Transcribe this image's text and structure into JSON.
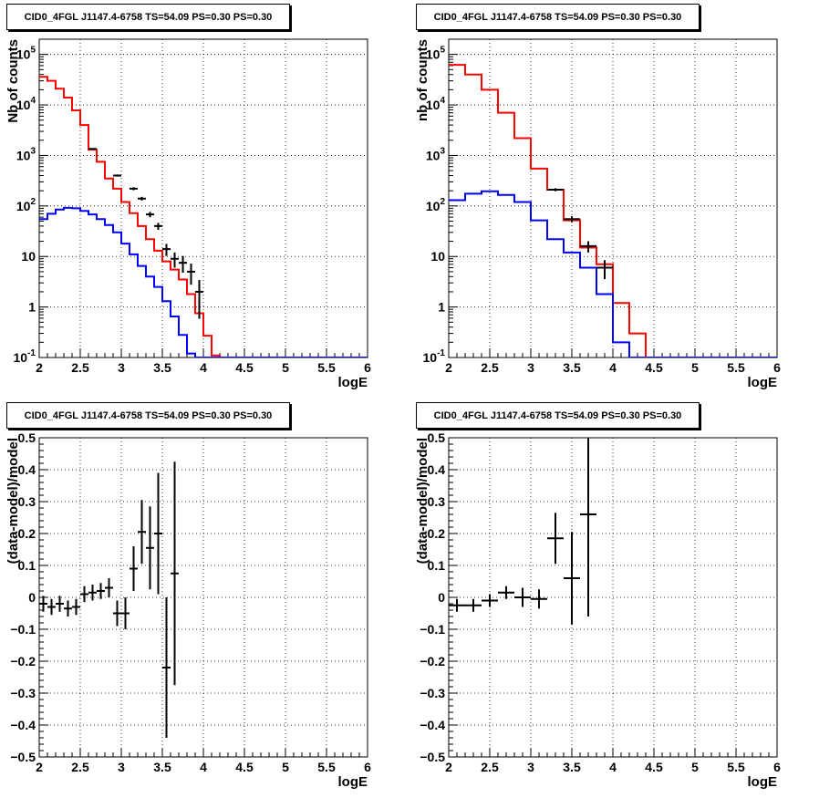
{
  "chart_data": [
    {
      "type": "histogram",
      "title": "CID0_4FGL J1147.4-6758 TS=54.09 PS=0.30 PS=0.30",
      "xlabel": "logE",
      "ylabel": "Nb of counts",
      "xlim": [
        2,
        6
      ],
      "ylim": [
        0.1,
        200000
      ],
      "yscale": "log",
      "grid": true,
      "x_ticks": [
        "2",
        "2.5",
        "3",
        "3.5",
        "4",
        "4.5",
        "5",
        "5.5",
        "6"
      ],
      "y_ticks": [
        "10^-1",
        "1",
        "10",
        "10^2",
        "10^3",
        "10^4",
        "10^5"
      ],
      "bin_edges": [
        2.0,
        2.1,
        2.2,
        2.3,
        2.4,
        2.5,
        2.6,
        2.7,
        2.8,
        2.9,
        3.0,
        3.1,
        3.2,
        3.3,
        3.4,
        3.5,
        3.6,
        3.7,
        3.8,
        3.9,
        4.0,
        4.1,
        4.2,
        4.3,
        4.4,
        4.5,
        4.6,
        4.7,
        4.8,
        4.9,
        5.0,
        5.1,
        5.2,
        5.3,
        5.4,
        5.5,
        5.6,
        5.7,
        5.8,
        5.9,
        6.0
      ],
      "series": [
        {
          "color": "#ff0000",
          "values": [
            36000,
            30000,
            21000,
            14000,
            7800,
            4000,
            1300,
            750,
            350,
            220,
            120,
            72,
            40,
            22,
            13,
            8,
            5.5,
            3.5,
            1.8,
            0.75,
            0.27,
            0.11,
            0.1,
            0.1,
            0.1,
            0.1,
            0.1,
            0.1,
            0.1,
            0.1,
            0.1,
            0.1,
            0.1,
            0.1,
            0.1,
            0.1,
            0.1,
            0.1,
            0.1,
            0.1
          ]
        },
        {
          "color": "#0000ff",
          "values": [
            55,
            70,
            85,
            92,
            90,
            80,
            68,
            55,
            42,
            30,
            18,
            11,
            6.5,
            4,
            2.5,
            1.3,
            0.65,
            0.28,
            0.12,
            0.1,
            0.1,
            0.1,
            0.1,
            0.1,
            0.1,
            0.1,
            0.1,
            0.1,
            0.1,
            0.1,
            0.1,
            0.1,
            0.1,
            0.1,
            0.1,
            0.1,
            0.1,
            0.1,
            0.1,
            0.1
          ]
        }
      ],
      "data_points": [
        {
          "x": 2.65,
          "y": 1350
        },
        {
          "x": 2.95,
          "y": 400
        },
        {
          "x": 3.15,
          "y": 220
        },
        {
          "x": 3.25,
          "y": 140
        },
        {
          "x": 3.35,
          "y": 68
        },
        {
          "x": 3.45,
          "y": 40
        },
        {
          "x": 3.55,
          "y": 14
        },
        {
          "x": 3.65,
          "y": 9
        },
        {
          "x": 3.75,
          "y": 7.5
        },
        {
          "x": 3.85,
          "y": 5
        },
        {
          "x": 3.95,
          "y": 2
        }
      ]
    },
    {
      "type": "histogram",
      "title": "CID0_4FGL J1147.4-6758 TS=54.09 PS=0.30 PS=0.30",
      "xlabel": "logE",
      "ylabel": "nb of counts",
      "xlim": [
        2,
        6
      ],
      "ylim": [
        0.1,
        200000
      ],
      "yscale": "log",
      "grid": true,
      "x_ticks": [
        "2",
        "2.5",
        "3",
        "3.5",
        "4",
        "4.5",
        "5",
        "5.5",
        "6"
      ],
      "y_ticks": [
        "10^-1",
        "1",
        "10",
        "10^2",
        "10^3",
        "10^4",
        "10^5"
      ],
      "bin_edges": [
        2.0,
        2.2,
        2.4,
        2.6,
        2.8,
        3.0,
        3.2,
        3.4,
        3.6,
        3.8,
        4.0,
        4.2,
        4.4,
        4.6,
        4.8,
        5.0,
        5.2,
        5.4,
        5.6,
        5.8,
        6.0
      ],
      "series": [
        {
          "color": "#ff0000",
          "values": [
            62000,
            40000,
            20000,
            7000,
            2200,
            550,
            210,
            52,
            15,
            7,
            1.2,
            0.3,
            0.1,
            0.1,
            0.1,
            0.1,
            0.1,
            0.1,
            0.1,
            0.1
          ]
        },
        {
          "color": "#0000ff",
          "values": [
            130,
            175,
            195,
            165,
            120,
            52,
            22,
            12,
            6,
            1.8,
            0.2,
            0.1,
            0.1,
            0.1,
            0.1,
            0.1,
            0.1,
            0.1,
            0.1,
            0.1
          ]
        }
      ],
      "data_points": [
        {
          "x": 3.3,
          "y": 210
        },
        {
          "x": 3.5,
          "y": 55
        },
        {
          "x": 3.7,
          "y": 16
        },
        {
          "x": 3.9,
          "y": 6
        }
      ]
    },
    {
      "type": "scatter",
      "title": "CID0_4FGL J1147.4-6758 TS=54.09 PS=0.30 PS=0.30",
      "xlabel": "logE",
      "ylabel": "(data-model)/model",
      "xlim": [
        2,
        6
      ],
      "ylim": [
        -0.5,
        0.5
      ],
      "grid": true,
      "x_ticks": [
        "2",
        "2.5",
        "3",
        "3.5",
        "4",
        "4.5",
        "5",
        "5.5",
        "6"
      ],
      "y_ticks": [
        "-0.5",
        "-0.4",
        "-0.3",
        "-0.2",
        "-0.1",
        "0",
        "0.1",
        "0.2",
        "0.3",
        "0.4",
        "0.5"
      ],
      "x_half_width": 0.05,
      "points": [
        {
          "x": 2.05,
          "y": -0.02,
          "err": 0.025
        },
        {
          "x": 2.15,
          "y": -0.03,
          "err": 0.025
        },
        {
          "x": 2.25,
          "y": -0.02,
          "err": 0.025
        },
        {
          "x": 2.35,
          "y": -0.035,
          "err": 0.025
        },
        {
          "x": 2.45,
          "y": -0.03,
          "err": 0.025
        },
        {
          "x": 2.55,
          "y": 0.01,
          "err": 0.025
        },
        {
          "x": 2.65,
          "y": 0.015,
          "err": 0.025
        },
        {
          "x": 2.75,
          "y": 0.02,
          "err": 0.025
        },
        {
          "x": 2.85,
          "y": 0.03,
          "err": 0.03
        },
        {
          "x": 2.95,
          "y": -0.05,
          "err": 0.04
        },
        {
          "x": 3.05,
          "y": -0.05,
          "err": 0.05
        },
        {
          "x": 3.15,
          "y": 0.09,
          "err": 0.07
        },
        {
          "x": 3.25,
          "y": 0.205,
          "err": 0.1
        },
        {
          "x": 3.35,
          "y": 0.155,
          "err": 0.13
        },
        {
          "x": 3.45,
          "y": 0.2,
          "err": 0.19
        },
        {
          "x": 3.55,
          "y": -0.22,
          "err": 0.22
        },
        {
          "x": 3.65,
          "y": 0.075,
          "err": 0.35
        }
      ]
    },
    {
      "type": "scatter",
      "title": "CID0_4FGL J1147.4-6758 TS=54.09 PS=0.30 PS=0.30",
      "xlabel": "logE",
      "ylabel": "(data-model)/model",
      "xlim": [
        2,
        6
      ],
      "ylim": [
        -0.5,
        0.5
      ],
      "grid": true,
      "x_ticks": [
        "2",
        "2.5",
        "3",
        "3.5",
        "4",
        "4.5",
        "5",
        "5.5",
        "6"
      ],
      "y_ticks": [
        "-0.5",
        "-0.4",
        "-0.3",
        "-0.2",
        "-0.1",
        "0",
        "0.1",
        "0.2",
        "0.3",
        "0.4",
        "0.5"
      ],
      "x_half_width": 0.1,
      "points": [
        {
          "x": 2.1,
          "y": -0.025,
          "err": 0.02
        },
        {
          "x": 2.3,
          "y": -0.025,
          "err": 0.02
        },
        {
          "x": 2.5,
          "y": -0.01,
          "err": 0.02
        },
        {
          "x": 2.7,
          "y": 0.015,
          "err": 0.02
        },
        {
          "x": 2.9,
          "y": 0.0,
          "err": 0.03
        },
        {
          "x": 3.1,
          "y": -0.005,
          "err": 0.03
        },
        {
          "x": 3.3,
          "y": 0.185,
          "err": 0.08
        },
        {
          "x": 3.5,
          "y": 0.06,
          "err": 0.145
        },
        {
          "x": 3.7,
          "y": 0.26,
          "err": 0.32
        }
      ]
    }
  ]
}
